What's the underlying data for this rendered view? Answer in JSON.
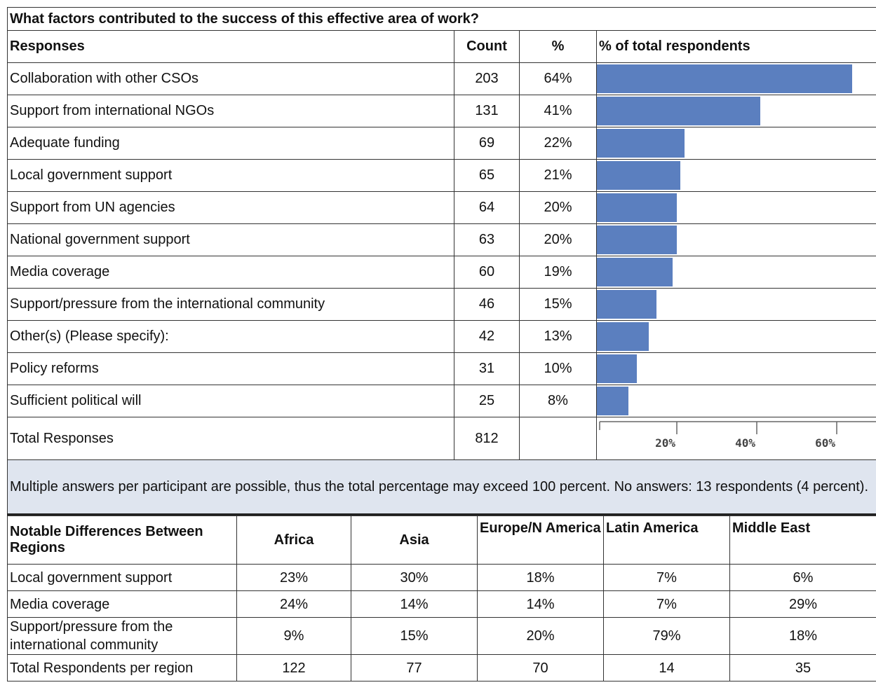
{
  "title": "What factors contributed to the success of this effective area of work?",
  "table": {
    "headers": [
      "Responses",
      "Count",
      "%",
      "% of total respondents"
    ],
    "rows": [
      {
        "label": "Collaboration with other CSOs",
        "count": 203,
        "pct": 64,
        "pct_label": "64%"
      },
      {
        "label": "Support from international NGOs",
        "count": 131,
        "pct": 41,
        "pct_label": "41%"
      },
      {
        "label": "Adequate funding",
        "count": 69,
        "pct": 22,
        "pct_label": "22%"
      },
      {
        "label": "Local government support",
        "count": 65,
        "pct": 21,
        "pct_label": "21%"
      },
      {
        "label": "Support from UN agencies",
        "count": 64,
        "pct": 20,
        "pct_label": "20%"
      },
      {
        "label": "National government support",
        "count": 63,
        "pct": 20,
        "pct_label": "20%"
      },
      {
        "label": "Media coverage",
        "count": 60,
        "pct": 19,
        "pct_label": "19%"
      },
      {
        "label": "Support/pressure from the international community",
        "count": 46,
        "pct": 15,
        "pct_label": "15%"
      },
      {
        "label": "Other(s) (Please specify):",
        "count": 42,
        "pct": 13,
        "pct_label": "13%"
      },
      {
        "label": "Policy reforms",
        "count": 31,
        "pct": 10,
        "pct_label": "10%"
      },
      {
        "label": "Sufficient political will",
        "count": 25,
        "pct": 8,
        "pct_label": "8%"
      }
    ],
    "total": {
      "label": "Total Responses",
      "count": 812
    },
    "bar_color": "#5b7fbf",
    "xlim": [
      0,
      70
    ],
    "xticks": [
      {
        "value": 20,
        "label": "20%"
      },
      {
        "value": 40,
        "label": "40%"
      },
      {
        "value": 60,
        "label": "60%"
      }
    ]
  },
  "note": "Multiple answers per participant are possible, thus the total percentage may exceed 100 percent. No answers: 13 respondents (4 percent).",
  "regions": {
    "headers": [
      "Notable Differences Between Regions",
      "Africa",
      "Asia",
      "Europe/N America",
      "Latin America",
      "Middle East"
    ],
    "rows": [
      [
        "Local government support",
        "23%",
        "30%",
        "18%",
        "7%",
        "6%"
      ],
      [
        "Media coverage",
        "24%",
        "14%",
        "14%",
        "7%",
        "29%"
      ],
      [
        "Support/pressure from the international community",
        "9%",
        "15%",
        "20%",
        "79%",
        "18%"
      ],
      [
        "Total Respondents per region",
        "122",
        "77",
        "70",
        "14",
        "35"
      ]
    ]
  }
}
